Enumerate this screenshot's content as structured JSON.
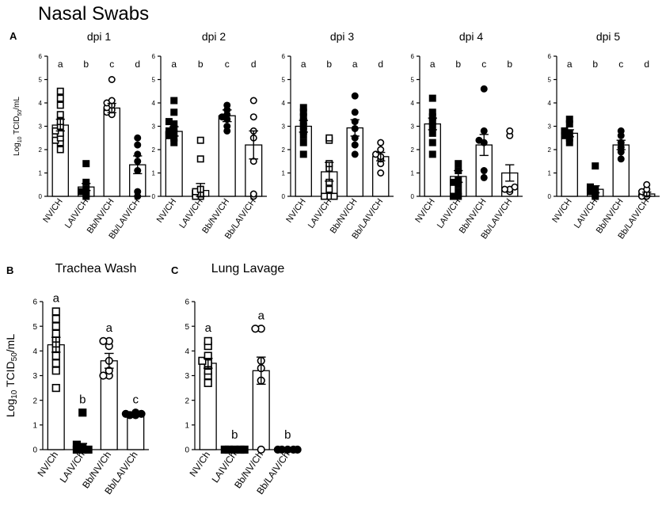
{
  "figure": {
    "title": "Nasal Swabs",
    "panel_a": "A",
    "panel_b": "B",
    "panel_c": "C",
    "ylabel_pre": "Log",
    "ylabel_sub1": "10",
    "ylabel_mid": " TCID",
    "ylabel_sub2": "50",
    "ylabel_post": "/mL"
  },
  "chart_data": [
    {
      "id": "nasal-dpi1",
      "panel": "A",
      "type": "bar",
      "title": "dpi 1",
      "ylim": [
        0,
        6
      ],
      "yticks": [
        0,
        1,
        2,
        3,
        4,
        5,
        6
      ],
      "show_ylabel": true,
      "categories": [
        "NV/CH",
        "LAIV/CH",
        "Bb/NV/CH",
        "Bb/LAIV/CH"
      ],
      "means": [
        3.05,
        0.4,
        3.78,
        1.35
      ],
      "sem": [
        0.25,
        0.15,
        0.2,
        0.38
      ],
      "letters": [
        "a",
        "b",
        "c",
        "d"
      ],
      "markers": [
        "square-open",
        "square-filled",
        "circle-open",
        "circle-filled"
      ],
      "points": [
        [
          2.0,
          2.3,
          2.4,
          2.5,
          2.7,
          2.8,
          3.0,
          3.2,
          3.5,
          3.9,
          4.2,
          4.5
        ],
        [
          0,
          0.1,
          0.2,
          0.3,
          0.6,
          1.4
        ],
        [
          3.5,
          3.6,
          3.7,
          3.8,
          3.9,
          4.0,
          4.1,
          5.0
        ],
        [
          0,
          0.2,
          1.1,
          1.5,
          1.8,
          2.2,
          2.5
        ]
      ]
    },
    {
      "id": "nasal-dpi2",
      "panel": "A",
      "type": "bar",
      "title": "dpi 2",
      "ylim": [
        0,
        6
      ],
      "yticks": [
        0,
        1,
        2,
        3,
        4,
        5,
        6
      ],
      "show_ylabel": false,
      "categories": [
        "NV/CH",
        "LAIV/CH",
        "Bb/NV/CH",
        "Bb/LAIV/CH"
      ],
      "means": [
        2.78,
        0.25,
        3.45,
        2.2
      ],
      "sem": [
        0.2,
        0.3,
        0.25,
        0.6
      ],
      "letters": [
        "a",
        "b",
        "c",
        "d"
      ],
      "markers": [
        "square-filled",
        "square-open",
        "circle-filled",
        "circle-open"
      ],
      "points": [
        [
          2.3,
          2.5,
          2.6,
          2.7,
          2.8,
          2.9,
          3.1,
          3.2,
          3.6,
          4.1
        ],
        [
          0,
          0,
          0.1,
          0.2,
          0.3,
          1.6,
          2.4
        ],
        [
          2.8,
          3.0,
          3.3,
          3.4,
          3.5,
          3.7,
          3.9
        ],
        [
          0,
          0.1,
          1.5,
          2.5,
          2.8,
          3.4,
          4.1
        ]
      ]
    },
    {
      "id": "nasal-dpi3",
      "panel": "A",
      "type": "bar",
      "title": "dpi 3",
      "ylim": [
        0,
        6
      ],
      "yticks": [
        0,
        1,
        2,
        3,
        4,
        5,
        6
      ],
      "show_ylabel": false,
      "categories": [
        "NV/CH",
        "LAIV/CH",
        "Bb/NV/CH",
        "Bb/LAIV/CH"
      ],
      "means": [
        3.0,
        1.05,
        2.93,
        1.7
      ],
      "sem": [
        0.25,
        0.4,
        0.35,
        0.18
      ],
      "letters": [
        "a",
        "b",
        "a",
        "d"
      ],
      "markers": [
        "square-filled",
        "square-open",
        "circle-filled",
        "circle-open"
      ],
      "points": [
        [
          1.8,
          2.3,
          2.6,
          2.8,
          3.0,
          3.2,
          3.4,
          3.6,
          3.8
        ],
        [
          0,
          0,
          0,
          0.3,
          0.6,
          1.2,
          1.4,
          2.4,
          2.5
        ],
        [
          1.8,
          2.2,
          2.5,
          2.9,
          3.2,
          3.6,
          4.3
        ],
        [
          1.0,
          1.4,
          1.6,
          1.7,
          1.8,
          2.0,
          2.3
        ]
      ]
    },
    {
      "id": "nasal-dpi4",
      "panel": "A",
      "type": "bar",
      "title": "dpi 4",
      "ylim": [
        0,
        6
      ],
      "yticks": [
        0,
        1,
        2,
        3,
        4,
        5,
        6
      ],
      "show_ylabel": false,
      "categories": [
        "NV/CH",
        "LAIV/CH",
        "Bb/NV/CH",
        "Bb/LAIV/CH"
      ],
      "means": [
        3.1,
        0.85,
        2.2,
        1.0
      ],
      "sem": [
        0.25,
        0.25,
        0.45,
        0.35
      ],
      "letters": [
        "a",
        "b",
        "c",
        "b"
      ],
      "markers": [
        "square-filled",
        "square-filled",
        "circle-filled",
        "circle-open"
      ],
      "points": [
        [
          1.8,
          2.3,
          2.7,
          3.0,
          3.2,
          3.4,
          3.6,
          4.2
        ],
        [
          0,
          0,
          0.2,
          0.5,
          0.6,
          0.7,
          1.1,
          1.4
        ],
        [
          0.8,
          1.1,
          2.3,
          2.4,
          2.8,
          4.6
        ],
        [
          0.2,
          0.3,
          0.3,
          0.4,
          2.6,
          2.8
        ]
      ]
    },
    {
      "id": "nasal-dpi5",
      "panel": "A",
      "type": "bar",
      "title": "dpi 5",
      "ylim": [
        0,
        6
      ],
      "yticks": [
        0,
        1,
        2,
        3,
        4,
        5,
        6
      ],
      "show_ylabel": false,
      "categories": [
        "NV/CH",
        "LAIV/CH",
        "Bb/NV/CH",
        "Bb/LAIV/CH"
      ],
      "means": [
        2.7,
        0.3,
        2.2,
        0.1
      ],
      "sem": [
        0.15,
        0.15,
        0.2,
        0.08
      ],
      "letters": [
        "a",
        "b",
        "c",
        "d"
      ],
      "markers": [
        "square-filled",
        "square-filled",
        "circle-filled",
        "circle-open"
      ],
      "points": [
        [
          2.3,
          2.5,
          2.6,
          2.7,
          2.8,
          3.1,
          3.3
        ],
        [
          0,
          0.1,
          0.2,
          0.3,
          0.4,
          1.3
        ],
        [
          1.6,
          1.9,
          2.1,
          2.3,
          2.6,
          2.8
        ],
        [
          0,
          0,
          0.1,
          0.2,
          0.3,
          0.5
        ]
      ]
    },
    {
      "id": "trachea-wash",
      "panel": "B",
      "type": "bar",
      "title": "Trachea Wash",
      "ylim": [
        0,
        6
      ],
      "yticks": [
        0,
        1,
        2,
        3,
        4,
        5,
        6
      ],
      "show_ylabel": true,
      "categories": [
        "NV/Ch",
        "LAIV/Ch",
        "Bb/NV/Ch",
        "Bb/LAIV/Ch"
      ],
      "means": [
        4.25,
        0.1,
        3.6,
        1.42
      ],
      "sem": [
        0.3,
        0.15,
        0.3,
        0.05
      ],
      "letters": [
        "a",
        "b",
        "a",
        "c"
      ],
      "markers": [
        "square-open",
        "square-filled",
        "circle-open",
        "circle-filled"
      ],
      "points": [
        [
          2.5,
          3.2,
          3.5,
          3.8,
          4.1,
          4.3,
          4.5,
          4.7,
          5.0,
          5.3,
          5.6
        ],
        [
          0,
          0,
          0,
          0.1,
          0.2,
          1.5
        ],
        [
          3.0,
          3.0,
          3.2,
          3.6,
          4.2,
          4.4,
          4.4
        ],
        [
          1.4,
          1.4,
          1.45,
          1.45,
          1.5
        ]
      ]
    },
    {
      "id": "lung-lavage",
      "panel": "C",
      "type": "bar",
      "title": "Lung Lavage",
      "ylim": [
        0,
        6
      ],
      "yticks": [
        0,
        1,
        2,
        3,
        4,
        5,
        6
      ],
      "show_ylabel": false,
      "categories": [
        "NV/Ch",
        "LAIV/Ch",
        "Bb/NV/Ch",
        "Bb/LAIV/Ch"
      ],
      "means": [
        3.5,
        0,
        3.2,
        0
      ],
      "sem": [
        0.2,
        0,
        0.55,
        0
      ],
      "letters": [
        "a",
        "b",
        "a",
        "b"
      ],
      "markers": [
        "square-open",
        "square-filled",
        "circle-open",
        "circle-filled"
      ],
      "points": [
        [
          2.7,
          3.0,
          3.2,
          3.4,
          3.5,
          3.6,
          3.8,
          4.2,
          4.4
        ],
        [
          0,
          0,
          0,
          0,
          0
        ],
        [
          0,
          2.8,
          3.3,
          3.6,
          4.9,
          4.9
        ],
        [
          0,
          0,
          0,
          0,
          0
        ]
      ]
    }
  ]
}
